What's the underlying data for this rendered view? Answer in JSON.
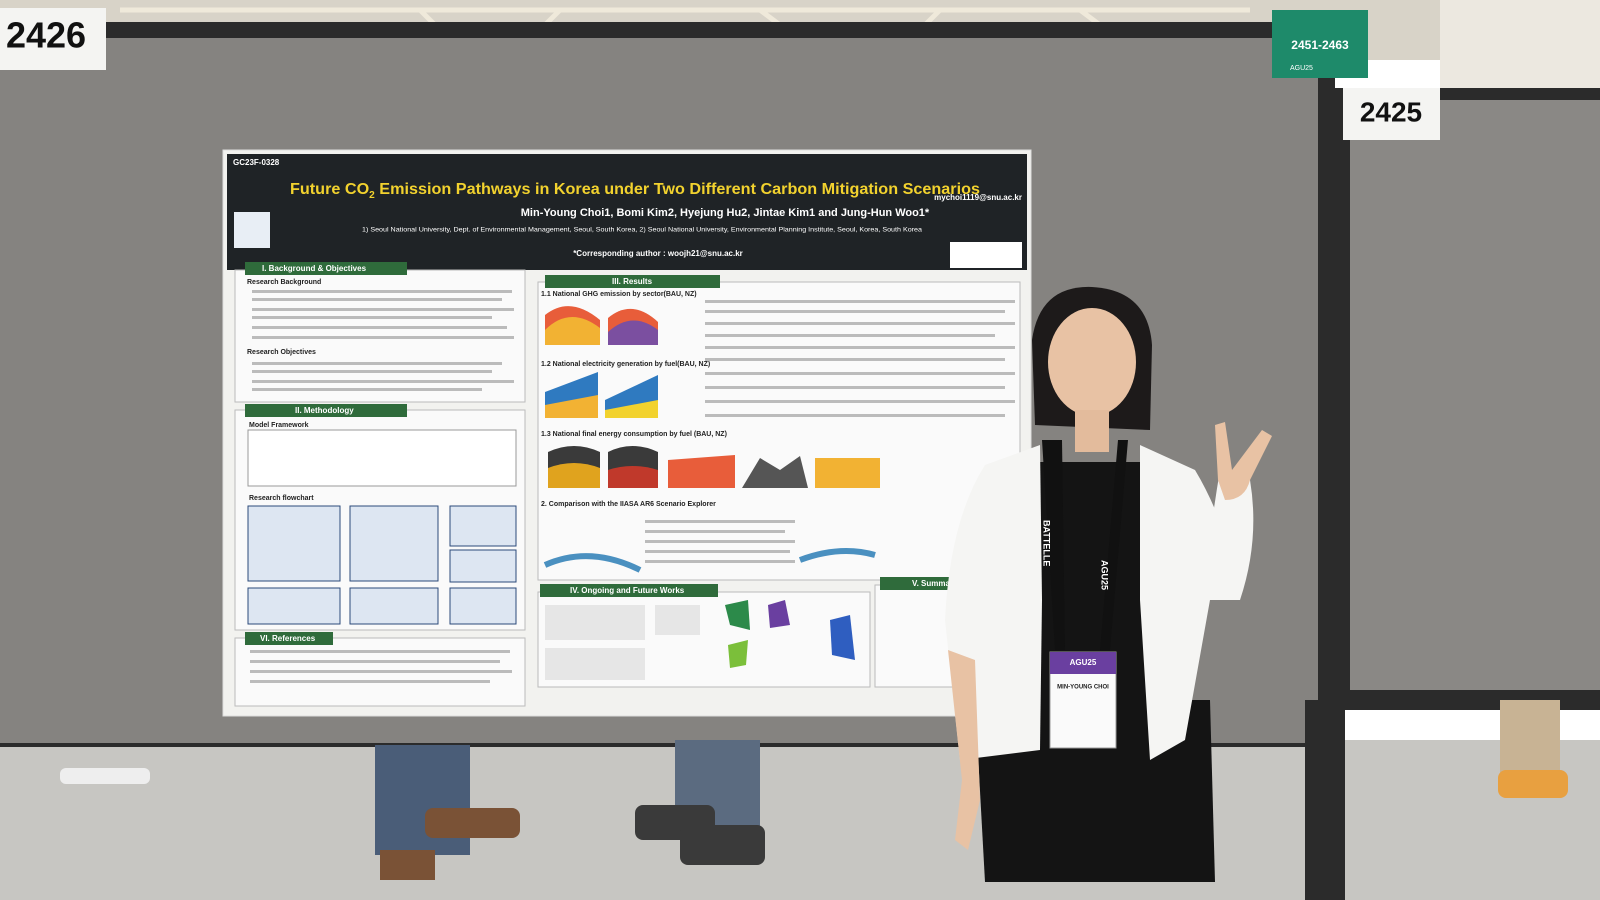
{
  "booth_numbers": [
    "2426",
    "2425"
  ],
  "sign": {
    "range": "2451-2463",
    "event": "AGU25"
  },
  "poster": {
    "id": "GC23F-0328",
    "email": "mychoi1119@snu.ac.kr",
    "title_parts": [
      "Future CO",
      "2",
      " Emission Pathways in Korea under Two Different Carbon Mitigation Scenarios"
    ],
    "authors": "Min-Young Choi1, Bomi Kim2, Hyejung Hu2, Jintae Kim1 and Jung-Hun Woo1*",
    "affiliations": "1) Seoul National University, Dept. of Environmental Management, Seoul, South Korea, 2) Seoul National University, Environmental Planning Institute, Seoul, Korea, South Korea",
    "corresponding": "*Corresponding author : woojh21@snu.ac.kr",
    "sections": [
      "I. Background & Objectives",
      "II. Methodology",
      "III. Results",
      "IV. Ongoing and Future Works",
      "V. Summary",
      "VI. References"
    ],
    "subsections": [
      "Research Background",
      "Research Objectives",
      "Model Framework",
      "Research flowchart",
      "1.1 National GHG emission by sector(BAU, NZ)",
      "1.2 National electricity generation by fuel(BAU, NZ)",
      "1.3 National final energy consumption by fuel (BAU, NZ)",
      "2. Comparison with the IIASA AR6 Scenario Explorer"
    ]
  },
  "badge": {
    "lanyard": "BATTELLE",
    "event": "AGU25",
    "name": "MIN-YOUNG CHOI"
  }
}
